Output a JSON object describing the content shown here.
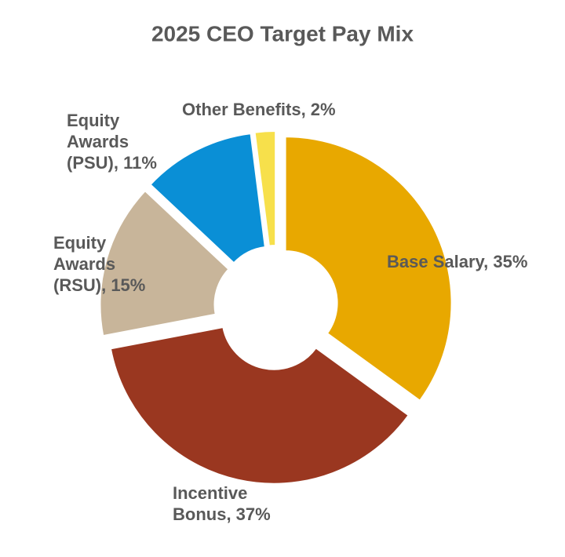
{
  "chart_data": {
    "type": "donut",
    "title": "2025 CEO Target Pay Mix",
    "labels": [
      "Base Salary, 35%",
      "Incentive Bonus, 37%",
      "Equity Awards (RSU), 15%",
      "Equity Awards (PSU), 11%",
      "Other Benefits, 2%"
    ],
    "values": [
      35,
      37,
      15,
      11,
      2
    ],
    "colors": [
      "#E8A800",
      "#9A3720",
      "#C8B59A",
      "#0A8FD6",
      "#F7E04B"
    ]
  }
}
